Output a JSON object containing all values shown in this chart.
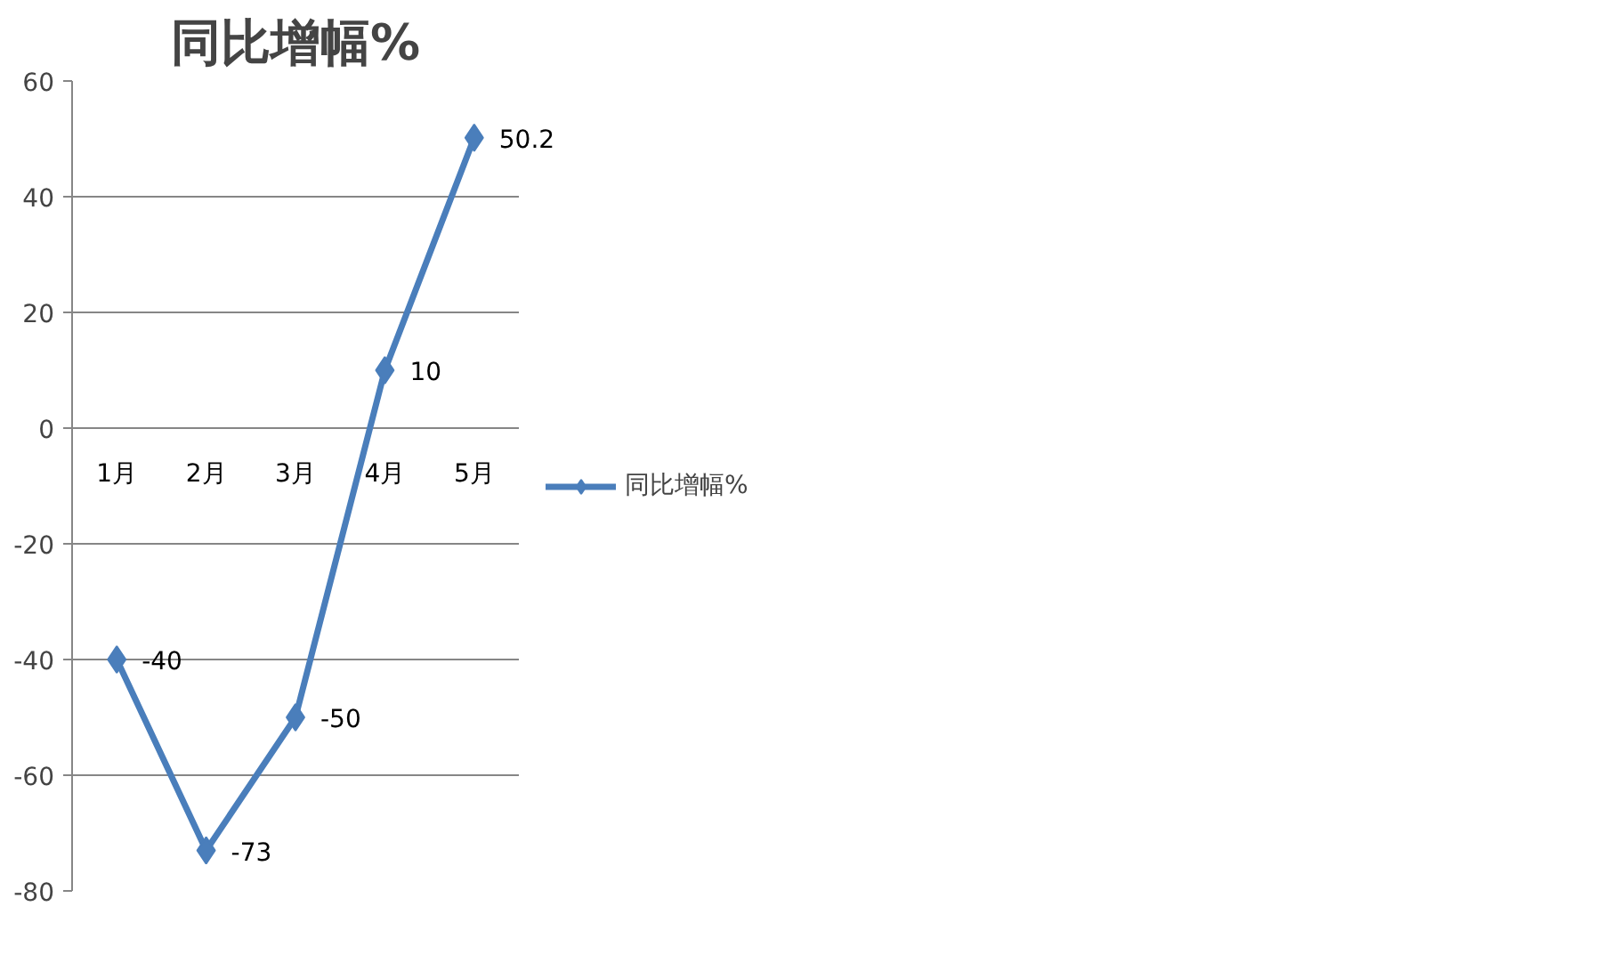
{
  "chart_data": {
    "type": "line",
    "title": "同比增幅%",
    "categories": [
      "1月",
      "2月",
      "3月",
      "4月",
      "5月"
    ],
    "series": [
      {
        "name": "同比增幅%",
        "color": "#4a7ebb",
        "values": [
          -40,
          -73,
          -50,
          10,
          50.2
        ]
      }
    ],
    "ylim": [
      -80,
      60
    ],
    "yticks": [
      -80,
      -60,
      -40,
      -20,
      0,
      20,
      40,
      60
    ],
    "grid": "y",
    "legend": "right",
    "marker": "diamond",
    "line_style": "solid",
    "data_labels": true
  }
}
